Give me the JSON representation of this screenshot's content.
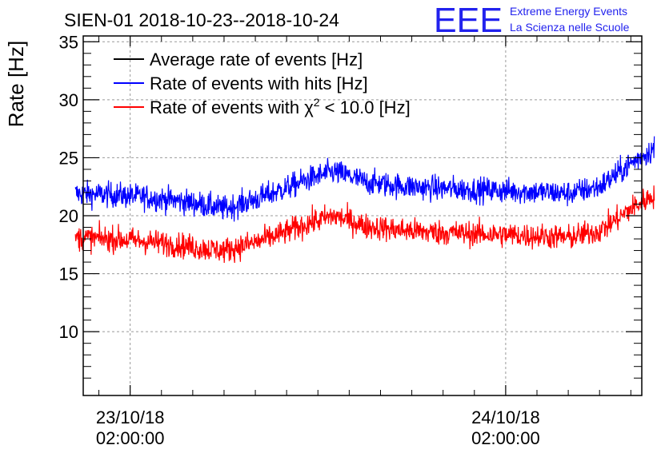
{
  "chart_data": {
    "type": "line",
    "title": "SIEN-01 2018-10-23--2018-10-24",
    "ylabel": "Rate [Hz]",
    "xlabel": "",
    "ylim": [
      4.5,
      35.5
    ],
    "xlim_hours": [
      -3.0,
      32.7
    ],
    "y_ticks": [
      10,
      15,
      20,
      25,
      30,
      35
    ],
    "x_ticks": [
      {
        "hour": 0,
        "date": "23/10/18",
        "time": "02:00:00"
      },
      {
        "hour": 24,
        "date": "24/10/18",
        "time": "02:00:00"
      }
    ],
    "grid": true,
    "legend_position": "top-left",
    "series": [
      {
        "name": "Average rate of events [Hz]",
        "legend_main": "Average rate of events [Hz]",
        "color": "#000000",
        "x": [],
        "values": []
      },
      {
        "name": "Rate of events with hits [Hz]",
        "legend_main": "Rate of events with hits [Hz]",
        "color": "#0000ff",
        "x": [
          -3.5,
          -1,
          1,
          3,
          4.5,
          6,
          8,
          10,
          11.5,
          13,
          14,
          15,
          17,
          19,
          21,
          23,
          25,
          27,
          28,
          30,
          31,
          32,
          33.5
        ],
        "values": [
          21.9,
          21.8,
          21.6,
          21.3,
          21.0,
          20.6,
          21.4,
          22.4,
          23.2,
          23.8,
          23.4,
          22.9,
          22.6,
          22.4,
          22.3,
          22.2,
          22.1,
          22.0,
          21.9,
          22.5,
          23.5,
          24.5,
          25.8
        ],
        "noise": 0.55
      },
      {
        "name": "Rate of events with χ² < 10.0 [Hz]",
        "legend_main": "Rate of events with χ",
        "legend_sup": "2",
        "legend_tail": " < 10.0 [Hz]",
        "color": "#ff0000",
        "x": [
          -3.5,
          -1,
          1,
          3,
          4.5,
          6,
          8,
          10,
          11.5,
          13,
          14,
          15,
          17,
          19,
          21,
          23,
          25,
          27,
          28,
          30,
          31,
          32,
          33.5
        ],
        "values": [
          18.1,
          18.0,
          17.8,
          17.5,
          17.2,
          17.0,
          17.7,
          18.6,
          19.4,
          20.0,
          19.6,
          19.1,
          18.8,
          18.6,
          18.5,
          18.4,
          18.3,
          18.2,
          18.1,
          18.7,
          19.6,
          20.6,
          21.8
        ],
        "noise": 0.55
      }
    ]
  },
  "logo": {
    "mark": "EEE",
    "line1": "Extreme Energy Events",
    "line2": "La Scienza nelle Scuole",
    "color": "#2222ee"
  }
}
